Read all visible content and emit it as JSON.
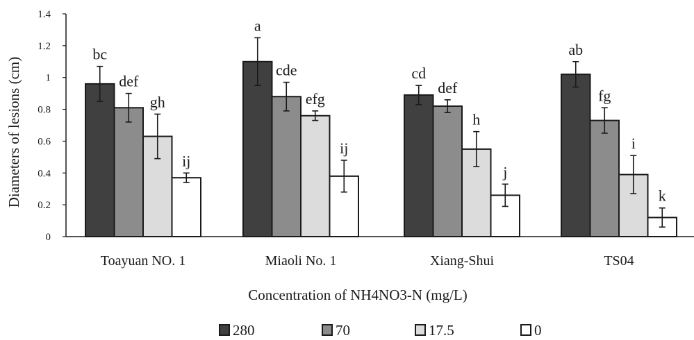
{
  "chart_data": {
    "type": "bar",
    "title": "",
    "xlabel": "Concentration of NH4NO3-N (mg/L)",
    "ylabel": "Diameters of lesions (cm)",
    "ylim": [
      0,
      1.4
    ],
    "yticks": [
      0,
      0.2,
      0.4,
      0.6,
      0.8,
      1,
      1.2,
      1.4
    ],
    "ytick_labels": [
      "0",
      "0.2",
      "0.4",
      "0.6",
      "0.8",
      "1",
      "1.2",
      "1.4"
    ],
    "categories": [
      "Toayuan NO. 1",
      "Miaoli No. 1",
      "Xiang-Shui",
      "TS04"
    ],
    "legend_position": "bottom",
    "grid": false,
    "series": [
      {
        "name": "280",
        "color": "#404040",
        "values": [
          0.96,
          1.1,
          0.89,
          1.02
        ],
        "errors": [
          0.11,
          0.15,
          0.06,
          0.08
        ],
        "letters": [
          "bc",
          "a",
          "cd",
          "ab"
        ]
      },
      {
        "name": "70",
        "color": "#8c8c8c",
        "values": [
          0.81,
          0.88,
          0.82,
          0.73
        ],
        "errors": [
          0.09,
          0.09,
          0.04,
          0.08
        ],
        "letters": [
          "def",
          "cde",
          "def",
          "fg"
        ]
      },
      {
        "name": "17.5",
        "color": "#dcdcdc",
        "values": [
          0.63,
          0.76,
          0.55,
          0.39
        ],
        "errors": [
          0.14,
          0.03,
          0.11,
          0.12
        ],
        "letters": [
          "gh",
          "efg",
          "h",
          "i"
        ]
      },
      {
        "name": "0",
        "color": "#ffffff",
        "values": [
          0.37,
          0.38,
          0.26,
          0.12
        ],
        "errors": [
          0.03,
          0.1,
          0.07,
          0.06
        ],
        "letters": [
          "ij",
          "ij",
          "j",
          "k"
        ]
      }
    ]
  }
}
